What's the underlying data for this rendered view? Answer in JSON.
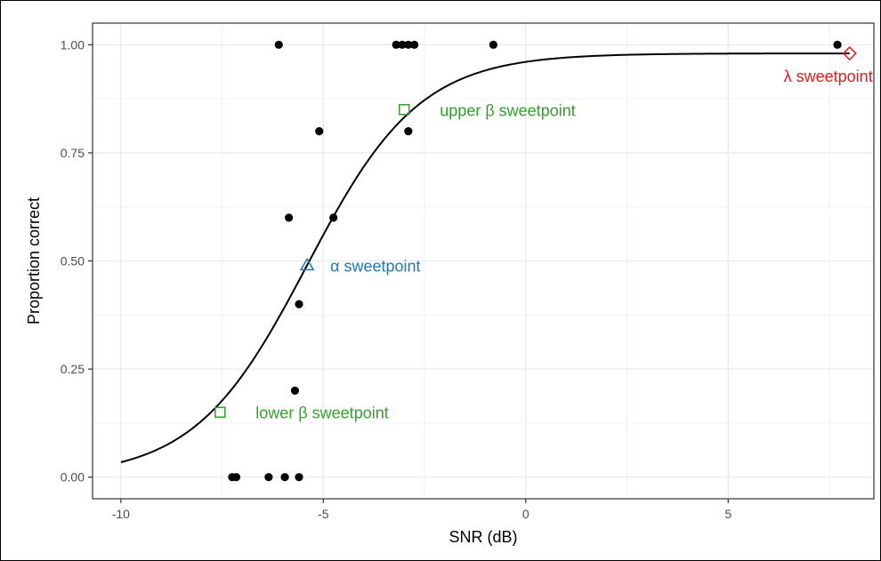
{
  "chart_data": {
    "type": "scatter",
    "title": "",
    "xlabel": "SNR (dB)",
    "ylabel": "Proportion correct",
    "xlim": [
      -10.7,
      8.6
    ],
    "ylim": [
      -0.05,
      1.05
    ],
    "x_ticks": [
      -10,
      -5,
      0,
      5
    ],
    "x_tick_labels": [
      "-10",
      "-5",
      "0",
      "5"
    ],
    "y_ticks": [
      0,
      0.25,
      0.5,
      0.75,
      1
    ],
    "y_tick_labels": [
      "0.00",
      "0.25",
      "0.50",
      "0.75",
      "1.00"
    ],
    "grid": true,
    "points": [
      {
        "x": -6.1,
        "y": 1.0
      },
      {
        "x": -3.2,
        "y": 1.0
      },
      {
        "x": -3.05,
        "y": 1.0
      },
      {
        "x": -2.9,
        "y": 1.0
      },
      {
        "x": -2.75,
        "y": 1.0
      },
      {
        "x": -0.8,
        "y": 1.0
      },
      {
        "x": 7.7,
        "y": 1.0
      },
      {
        "x": -5.1,
        "y": 0.8
      },
      {
        "x": -2.9,
        "y": 0.8
      },
      {
        "x": -5.85,
        "y": 0.6
      },
      {
        "x": -4.75,
        "y": 0.6
      },
      {
        "x": -5.6,
        "y": 0.4
      },
      {
        "x": -5.7,
        "y": 0.2
      },
      {
        "x": -7.25,
        "y": 0.0
      },
      {
        "x": -7.15,
        "y": 0.0
      },
      {
        "x": -6.35,
        "y": 0.0
      },
      {
        "x": -5.95,
        "y": 0.0
      },
      {
        "x": -5.6,
        "y": 0.0
      }
    ],
    "fitted_curve": {
      "model": "logistic",
      "alpha": -5.4,
      "beta": 0.72,
      "gamma": 0.0,
      "lambda": 0.02,
      "x_range": [
        -10,
        8
      ]
    },
    "sweetpoints": [
      {
        "label": "λ sweetpoint",
        "x": 8.0,
        "y": 0.98,
        "marker": "diamond",
        "color": "#e41a1c",
        "label_side": "below"
      },
      {
        "label": "upper β sweetpoint",
        "x": -3.0,
        "y": 0.85,
        "marker": "square",
        "color": "#33a02c",
        "label_side": "right"
      },
      {
        "label": "α sweetpoint",
        "x": -5.4,
        "y": 0.49,
        "marker": "triangle",
        "color": "#1f78b4",
        "label_side": "right"
      },
      {
        "label": "lower β sweetpoint",
        "x": -7.55,
        "y": 0.15,
        "marker": "square",
        "color": "#33a02c",
        "label_side": "right"
      }
    ]
  }
}
